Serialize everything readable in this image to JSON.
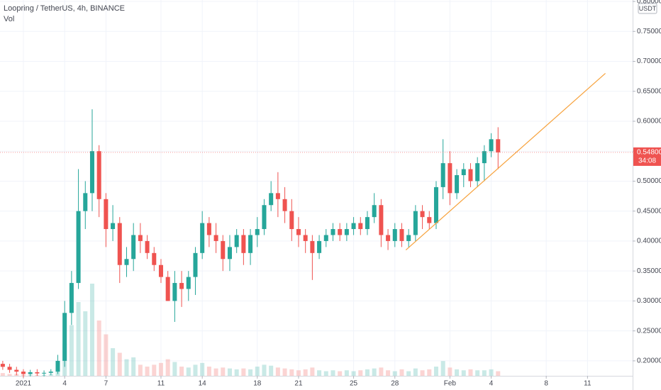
{
  "chart_data": {
    "type": "candlestick",
    "title": "Loopring / TetherUS, 4h, BINANCE",
    "subtitle": "Vol",
    "currency": "USDT",
    "up_color": "#26a69a",
    "down_color": "#ef5350",
    "grid": true,
    "xlim": [
      -1.7,
      44.28
    ],
    "xticks": [
      {
        "value": 0,
        "label": "2021"
      },
      {
        "value": 3,
        "label": "4"
      },
      {
        "value": 6,
        "label": "7"
      },
      {
        "value": 10,
        "label": "11"
      },
      {
        "value": 13,
        "label": "14"
      },
      {
        "value": 17,
        "label": "18"
      },
      {
        "value": 20,
        "label": "21"
      },
      {
        "value": 24,
        "label": "25"
      },
      {
        "value": 27,
        "label": "28"
      },
      {
        "value": 31,
        "label": "Feb"
      },
      {
        "value": 34,
        "label": "4"
      },
      {
        "value": 38,
        "label": "8"
      },
      {
        "value": 41,
        "label": "11"
      }
    ],
    "ylim": [
      0.175,
      0.8024
    ],
    "yticks": [
      {
        "value": 0.2,
        "label": "0.20000"
      },
      {
        "value": 0.25,
        "label": "0.25000"
      },
      {
        "value": 0.3,
        "label": "0.30000"
      },
      {
        "value": 0.35,
        "label": "0.35000"
      },
      {
        "value": 0.4,
        "label": "0.40000"
      },
      {
        "value": 0.45,
        "label": "0.45000"
      },
      {
        "value": 0.5,
        "label": "0.50000"
      },
      {
        "value": 0.55,
        "label": "0.55000"
      },
      {
        "value": 0.6,
        "label": "0.60000"
      },
      {
        "value": 0.65,
        "label": "0.65000"
      },
      {
        "value": 0.7,
        "label": "0.70000"
      },
      {
        "value": 0.75,
        "label": "0.75000"
      },
      {
        "value": 0.8,
        "label": "0.80000"
      }
    ],
    "candles": {
      "x": [
        -1.5,
        -1,
        -0.5,
        0,
        0.5,
        1,
        1.5,
        2,
        2.5,
        3,
        3.5,
        4,
        4.5,
        5,
        5.5,
        6,
        6.5,
        7,
        7.5,
        8,
        8.5,
        9,
        9.5,
        10,
        10.5,
        11,
        11.5,
        12,
        12.5,
        13,
        13.5,
        14,
        14.5,
        15,
        15.5,
        16,
        16.5,
        17,
        17.5,
        18,
        18.5,
        19,
        19.5,
        20,
        20.5,
        21,
        21.5,
        22,
        22.5,
        23,
        23.5,
        24,
        24.5,
        25,
        25.5,
        26,
        26.5,
        27,
        27.5,
        28,
        28.5,
        29,
        29.5,
        30,
        30.5,
        31,
        31.5,
        32,
        32.5,
        33,
        33.5,
        34,
        34.5
      ],
      "open": [
        0.195,
        0.19,
        0.185,
        0.182,
        0.178,
        0.181,
        0.179,
        0.18,
        0.182,
        0.2,
        0.28,
        0.33,
        0.45,
        0.48,
        0.55,
        0.47,
        0.42,
        0.43,
        0.36,
        0.37,
        0.41,
        0.4,
        0.38,
        0.36,
        0.34,
        0.3,
        0.33,
        0.32,
        0.34,
        0.38,
        0.43,
        0.41,
        0.4,
        0.37,
        0.39,
        0.41,
        0.38,
        0.41,
        0.42,
        0.46,
        0.48,
        0.47,
        0.45,
        0.42,
        0.41,
        0.4,
        0.38,
        0.4,
        0.41,
        0.42,
        0.41,
        0.42,
        0.43,
        0.42,
        0.44,
        0.46,
        0.41,
        0.4,
        0.42,
        0.4,
        0.41,
        0.45,
        0.44,
        0.43,
        0.49,
        0.53,
        0.48,
        0.51,
        0.52,
        0.5,
        0.53,
        0.55,
        0.57
      ],
      "high": [
        0.2,
        0.195,
        0.19,
        0.186,
        0.185,
        0.186,
        0.184,
        0.186,
        0.21,
        0.3,
        0.35,
        0.52,
        0.5,
        0.62,
        0.56,
        0.48,
        0.46,
        0.44,
        0.39,
        0.43,
        0.43,
        0.41,
        0.39,
        0.37,
        0.35,
        0.35,
        0.35,
        0.35,
        0.39,
        0.45,
        0.44,
        0.43,
        0.41,
        0.41,
        0.42,
        0.42,
        0.42,
        0.44,
        0.47,
        0.5,
        0.515,
        0.49,
        0.47,
        0.44,
        0.42,
        0.41,
        0.41,
        0.42,
        0.43,
        0.43,
        0.43,
        0.44,
        0.44,
        0.45,
        0.48,
        0.47,
        0.42,
        0.43,
        0.43,
        0.42,
        0.46,
        0.46,
        0.45,
        0.5,
        0.57,
        0.55,
        0.52,
        0.53,
        0.53,
        0.54,
        0.56,
        0.58,
        0.59
      ],
      "low": [
        0.185,
        0.18,
        0.176,
        0.172,
        0.174,
        0.175,
        0.174,
        0.176,
        0.178,
        0.19,
        0.26,
        0.32,
        0.42,
        0.45,
        0.44,
        0.39,
        0.4,
        0.33,
        0.34,
        0.35,
        0.38,
        0.37,
        0.35,
        0.33,
        0.3,
        0.265,
        0.29,
        0.3,
        0.31,
        0.37,
        0.39,
        0.38,
        0.35,
        0.35,
        0.38,
        0.36,
        0.36,
        0.39,
        0.41,
        0.45,
        0.44,
        0.43,
        0.4,
        0.39,
        0.38,
        0.335,
        0.37,
        0.39,
        0.4,
        0.4,
        0.4,
        0.41,
        0.41,
        0.41,
        0.43,
        0.39,
        0.385,
        0.39,
        0.39,
        0.39,
        0.4,
        0.42,
        0.42,
        0.42,
        0.47,
        0.46,
        0.47,
        0.49,
        0.49,
        0.49,
        0.5,
        0.54,
        0.52
      ],
      "close": [
        0.19,
        0.185,
        0.182,
        0.178,
        0.181,
        0.179,
        0.18,
        0.182,
        0.2,
        0.28,
        0.33,
        0.45,
        0.48,
        0.55,
        0.47,
        0.42,
        0.43,
        0.36,
        0.37,
        0.41,
        0.4,
        0.38,
        0.36,
        0.34,
        0.3,
        0.33,
        0.32,
        0.34,
        0.38,
        0.43,
        0.41,
        0.4,
        0.37,
        0.39,
        0.41,
        0.38,
        0.41,
        0.42,
        0.46,
        0.48,
        0.47,
        0.45,
        0.42,
        0.41,
        0.4,
        0.38,
        0.4,
        0.41,
        0.42,
        0.41,
        0.42,
        0.43,
        0.42,
        0.44,
        0.46,
        0.41,
        0.4,
        0.42,
        0.4,
        0.41,
        0.45,
        0.44,
        0.43,
        0.49,
        0.53,
        0.48,
        0.51,
        0.52,
        0.5,
        0.53,
        0.55,
        0.57,
        0.548
      ],
      "volume": [
        3,
        2,
        2,
        1,
        1,
        1,
        1,
        2,
        8,
        35,
        55,
        80,
        70,
        100,
        60,
        45,
        30,
        25,
        18,
        20,
        12,
        10,
        12,
        14,
        18,
        15,
        10,
        9,
        12,
        14,
        10,
        8,
        9,
        8,
        7,
        8,
        7,
        10,
        12,
        11,
        9,
        8,
        7,
        6,
        7,
        9,
        6,
        5,
        6,
        5,
        6,
        5,
        6,
        7,
        8,
        9,
        6,
        5,
        7,
        5,
        8,
        6,
        7,
        10,
        16,
        9,
        7,
        6,
        7,
        6,
        6,
        7,
        5
      ]
    },
    "trendline": {
      "color": "#f7a23c",
      "x": [
        27.8,
        42.3
      ],
      "y": [
        0.385,
        0.68
      ]
    },
    "last_price": {
      "value": 0.548,
      "label": "0.54800"
    },
    "countdown": "34:08"
  }
}
